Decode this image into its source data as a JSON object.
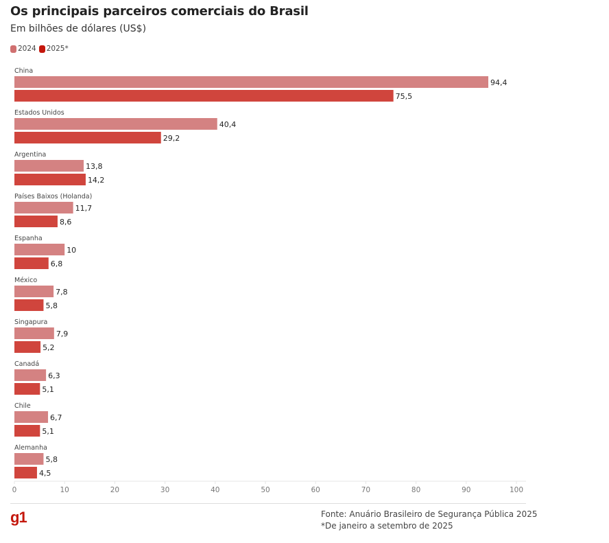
{
  "header": {
    "title": "Os principais parceiros comerciais do Brasil",
    "subtitle": "Em bilhões de dólares (US$)"
  },
  "legend": [
    {
      "label": "2024",
      "color": "#d07070"
    },
    {
      "label": "2025*",
      "color": "#c4170c"
    }
  ],
  "colors": {
    "bar_2024": "#d48282",
    "bar_2025": "#d0453d"
  },
  "chart_data": {
    "type": "bar",
    "orientation": "horizontal",
    "title": "Os principais parceiros comerciais do Brasil",
    "subtitle": "Em bilhões de dólares (US$)",
    "xlabel": "",
    "ylabel": "",
    "xlim": [
      0,
      100
    ],
    "xticks": [
      0,
      10,
      20,
      30,
      40,
      50,
      60,
      70,
      80,
      90,
      100
    ],
    "grid": false,
    "legend_position": "top-left",
    "categories": [
      "China",
      "Estados Unidos",
      "Argentina",
      "Países Baixos (Holanda)",
      "Espanha",
      "México",
      "Singapura",
      "Canadá",
      "Chile",
      "Alemanha"
    ],
    "series": [
      {
        "name": "2024",
        "values": [
          94.4,
          40.4,
          13.8,
          11.7,
          10,
          7.8,
          7.9,
          6.3,
          6.7,
          5.8
        ],
        "labels": [
          "94,4",
          "40,4",
          "13,8",
          "11,7",
          "10",
          "7,8",
          "7,9",
          "6,3",
          "6,7",
          "5,8"
        ]
      },
      {
        "name": "2025*",
        "values": [
          75.5,
          29.2,
          14.2,
          8.6,
          6.8,
          5.8,
          5.2,
          5.1,
          5.1,
          4.5
        ],
        "labels": [
          "75,5",
          "29,2",
          "14,2",
          "8,6",
          "6,8",
          "5,8",
          "5,2",
          "5,1",
          "5,1",
          "4,5"
        ]
      }
    ]
  },
  "footer": {
    "logo": "g1",
    "source": "Fonte: Anuário Brasileiro de Segurança Pública 2025",
    "note": "*De janeiro a setembro de 2025"
  }
}
